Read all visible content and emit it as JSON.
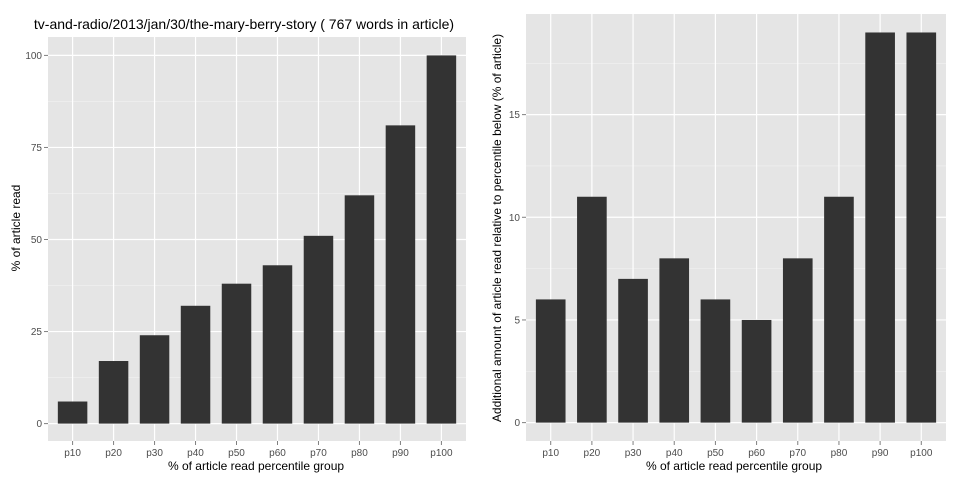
{
  "chart_data": [
    {
      "type": "bar",
      "title": "tv-and-radio/2013/jan/30/the-mary-berry-story ( 767 words in article)",
      "xlabel": "% of article read percentile group",
      "ylabel": "% of article read",
      "categories": [
        "p10",
        "p20",
        "p30",
        "p40",
        "p50",
        "p60",
        "p70",
        "p80",
        "p90",
        "p100"
      ],
      "values": [
        6,
        17,
        24,
        32,
        38,
        43,
        51,
        62,
        81,
        100
      ],
      "ylim": [
        0,
        105
      ],
      "yticks": [
        0,
        25,
        50,
        75,
        100
      ],
      "grid": true,
      "bar_color": "#333333",
      "panel_color": "#e5e5e5"
    },
    {
      "type": "bar",
      "title": "",
      "xlabel": "% of article read percentile group",
      "ylabel": "Additional amount of article read relative to percentile below (% of article)",
      "categories": [
        "p10",
        "p20",
        "p30",
        "p40",
        "p50",
        "p60",
        "p70",
        "p80",
        "p90",
        "p100"
      ],
      "values": [
        6,
        11,
        7,
        8,
        6,
        5,
        8,
        11,
        19,
        19
      ],
      "ylim": [
        0,
        19.9
      ],
      "yticks": [
        0,
        5,
        10,
        15
      ],
      "grid": true,
      "bar_color": "#333333",
      "panel_color": "#e5e5e5"
    }
  ]
}
